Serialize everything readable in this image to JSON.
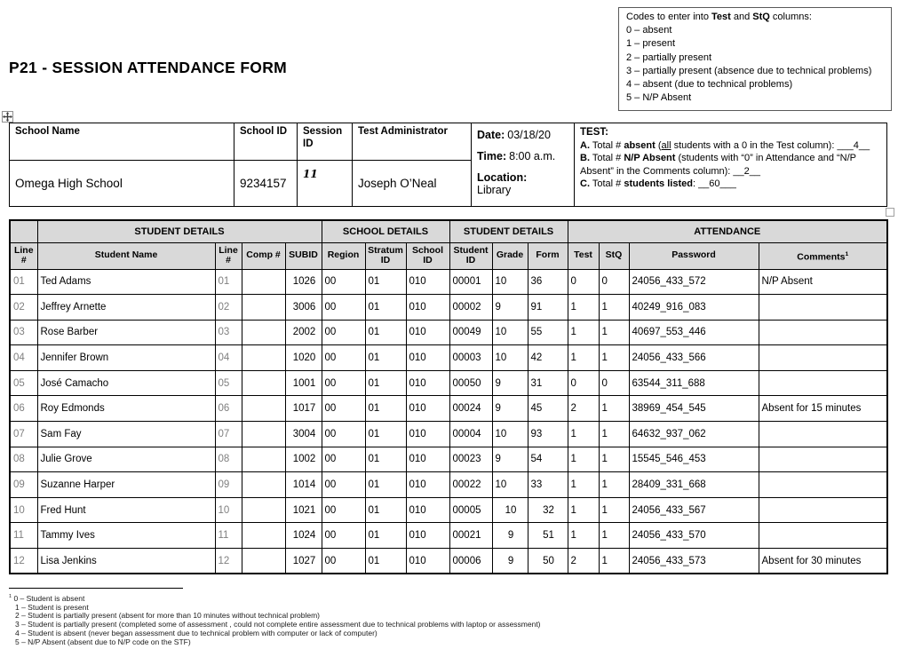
{
  "colors": {
    "header_shading": "#d9d9d9",
    "line_number_gray": "#808080",
    "border": "#000000"
  },
  "codes_box": {
    "intro": {
      "prefix": "Codes to enter into ",
      "bold1": "Test",
      "mid": " and ",
      "bold2": "StQ",
      "suffix": " columns:"
    },
    "items": [
      "0 – absent",
      "1 – present",
      "2 – partially present",
      "3 – partially present (absence due to technical problems)",
      "4 – absent (due to technical problems)",
      "5 – N/P Absent"
    ]
  },
  "title": "P21 - SESSION ATTENDANCE FORM",
  "header_table": {
    "labels": {
      "school_name": "School Name",
      "school_id": "School ID",
      "session_id": "Session ID",
      "test_administrator": "Test Administrator"
    },
    "values": {
      "school_name": "Omega High School",
      "school_id": "9234157",
      "session_id": "11",
      "test_administrator": "Joseph O’Neal"
    },
    "schedule": {
      "date_label": "Date:",
      "date": "03/18/20",
      "time_label": "Time:",
      "time": "8:00 a.m.",
      "location_label": "Location:",
      "location": "Library"
    },
    "test_summary": {
      "heading": "TEST:",
      "a": {
        "label": "A.",
        "pre": " Total # ",
        "bold": "absent",
        "mid": " (",
        "underlined": "all",
        "post": " students with a 0 in the Test column): ___4__"
      },
      "b": {
        "label": "B.",
        "pre": " Total # ",
        "bold": "N/P Absent",
        "post": " (students with “0” in Attendance and “N/P Absent” in the Comments column): __2__"
      },
      "c": {
        "label": "C.",
        "pre": " Total # ",
        "bold": "students listed",
        "post": ": __60___"
      }
    }
  },
  "attendance_table": {
    "group_headers": [
      "STUDENT DETAILS",
      "SCHOOL DETAILS",
      "STUDENT DETAILS",
      "ATTENDANCE"
    ],
    "column_headers": [
      "Line #",
      "Student Name",
      "Line #",
      "Comp #",
      "SUBID",
      "Region",
      "Stratum ID",
      "School ID",
      "Student ID",
      "Grade",
      "Form",
      "Test",
      "StQ",
      "Password",
      "Comments"
    ],
    "comments_superscript": "1",
    "rows": [
      {
        "line": "01",
        "name": "Ted Adams",
        "line2": "01",
        "comp": "",
        "subid": "1026",
        "region": "00",
        "stratum": "01",
        "school": "010",
        "student_id": "00001",
        "grade": "10",
        "form": "36",
        "test": "0",
        "stq": "0",
        "password": "24056_433_572",
        "comments": "N/P Absent",
        "grade_form_centered": false
      },
      {
        "line": "02",
        "name": "Jeffrey Arnette",
        "line2": "02",
        "comp": "",
        "subid": "3006",
        "region": "00",
        "stratum": "01",
        "school": "010",
        "student_id": "00002",
        "grade": "9",
        "form": "91",
        "test": "1",
        "stq": "1",
        "password": "40249_916_083",
        "comments": "",
        "grade_form_centered": false
      },
      {
        "line": "03",
        "name": "Rose Barber",
        "line2": "03",
        "comp": "",
        "subid": "2002",
        "region": "00",
        "stratum": "01",
        "school": "010",
        "student_id": "00049",
        "grade": "10",
        "form": "55",
        "test": "1",
        "stq": "1",
        "password": "40697_553_446",
        "comments": "",
        "grade_form_centered": false
      },
      {
        "line": "04",
        "name": "Jennifer Brown",
        "line2": "04",
        "comp": "",
        "subid": "1020",
        "region": "00",
        "stratum": "01",
        "school": "010",
        "student_id": "00003",
        "grade": "10",
        "form": "42",
        "test": "1",
        "stq": "1",
        "password": "24056_433_566",
        "comments": "",
        "grade_form_centered": false
      },
      {
        "line": "05",
        "name": "José Camacho",
        "line2": "05",
        "comp": "",
        "subid": "1001",
        "region": "00",
        "stratum": "01",
        "school": "010",
        "student_id": "00050",
        "grade": "9",
        "form": "31",
        "test": "0",
        "stq": "0",
        "password": "63544_311_688",
        "comments": "",
        "grade_form_centered": false
      },
      {
        "line": "06",
        "name": "Roy Edmonds",
        "line2": "06",
        "comp": "",
        "subid": "1017",
        "region": "00",
        "stratum": "01",
        "school": "010",
        "student_id": "00024",
        "grade": "9",
        "form": "45",
        "test": "2",
        "stq": "1",
        "password": "38969_454_545",
        "comments": "Absent for 15 minutes",
        "grade_form_centered": false
      },
      {
        "line": "07",
        "name": "Sam Fay",
        "line2": "07",
        "comp": "",
        "subid": "3004",
        "region": "00",
        "stratum": "01",
        "school": "010",
        "student_id": "00004",
        "grade": "10",
        "form": "93",
        "test": "1",
        "stq": "1",
        "password": "64632_937_062",
        "comments": "",
        "grade_form_centered": false
      },
      {
        "line": "08",
        "name": "Julie Grove",
        "line2": "08",
        "comp": "",
        "subid": "1002",
        "region": "00",
        "stratum": "01",
        "school": "010",
        "student_id": "00023",
        "grade": "9",
        "form": "54",
        "test": "1",
        "stq": "1",
        "password": "15545_546_453",
        "comments": "",
        "grade_form_centered": false
      },
      {
        "line": "09",
        "name": "Suzanne Harper",
        "line2": "09",
        "comp": "",
        "subid": "1014",
        "region": "00",
        "stratum": "01",
        "school": "010",
        "student_id": "00022",
        "grade": "10",
        "form": "33",
        "test": "1",
        "stq": "1",
        "password": "28409_331_668",
        "comments": "",
        "grade_form_centered": false
      },
      {
        "line": "10",
        "name": "Fred Hunt",
        "line2": "10",
        "comp": "",
        "subid": "1021",
        "region": "00",
        "stratum": "01",
        "school": "010",
        "student_id": "00005",
        "grade": "10",
        "form": "32",
        "test": "1",
        "stq": "1",
        "password": "24056_433_567",
        "comments": "",
        "grade_form_centered": true
      },
      {
        "line": "11",
        "name": "Tammy Ives",
        "line2": "11",
        "comp": "",
        "subid": "1024",
        "region": "00",
        "stratum": "01",
        "school": "010",
        "student_id": "00021",
        "grade": "9",
        "form": "51",
        "test": "1",
        "stq": "1",
        "password": "24056_433_570",
        "comments": "",
        "grade_form_centered": true
      },
      {
        "line": "12",
        "name": "Lisa Jenkins",
        "line2": "12",
        "comp": "",
        "subid": "1027",
        "region": "00",
        "stratum": "01",
        "school": "010",
        "student_id": "00006",
        "grade": "9",
        "form": "50",
        "test": "2",
        "stq": "1",
        "password": "24056_433_573",
        "comments": "Absent for 30 minutes",
        "grade_form_centered": true
      }
    ]
  },
  "footnotes": {
    "marker": "1",
    "lines": [
      "0 – Student is absent",
      "1 – Student is present",
      "2 – Student is partially present (absent for more than 10 minutes without technical problem)",
      "3 – Student is partially present (completed some of assessment , could not complete entire assessment due to technical problems with laptop or assessment)",
      "4 – Student is absent (never began assessment due to technical problem with computer or lack of computer)",
      "5 – N/P Absent (absent due to N/P code on the STF)"
    ]
  }
}
